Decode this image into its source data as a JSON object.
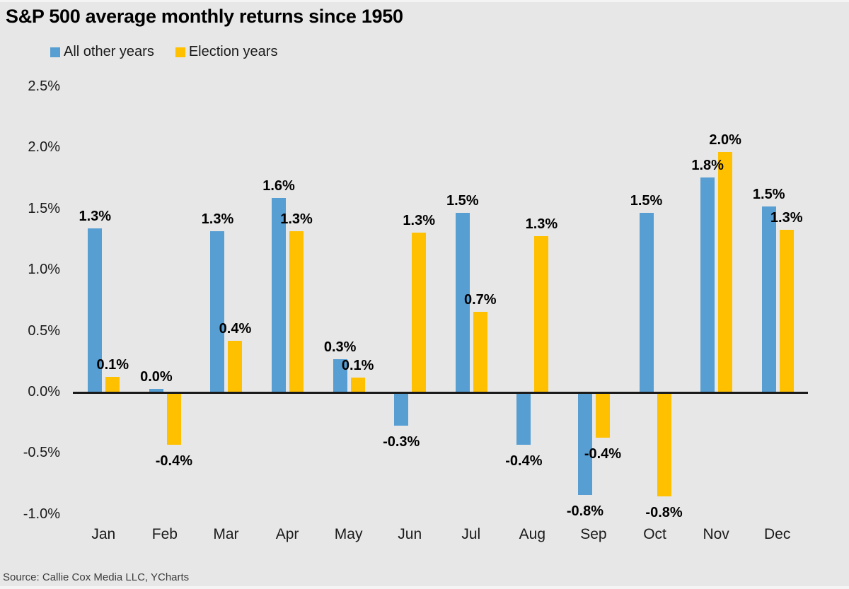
{
  "title": "S&P 500 average monthly returns since 1950",
  "source": "Source: Callie Cox Media LLC, YCharts",
  "colors": {
    "background": "#e7e7e7",
    "axis": "#1a1a1a",
    "series_blue": "#579ed2",
    "series_yellow": "#ffc000"
  },
  "chart_data": {
    "type": "bar",
    "title": "S&P 500 average monthly returns since 1950",
    "xlabel": "",
    "ylabel": "",
    "categories": [
      "Jan",
      "Feb",
      "Mar",
      "Apr",
      "May",
      "Jun",
      "Jul",
      "Aug",
      "Sep",
      "Oct",
      "Nov",
      "Dec"
    ],
    "series": [
      {
        "name": "All other years",
        "color": "#579ed2",
        "values": [
          1.34,
          0.03,
          1.32,
          1.59,
          0.27,
          -0.27,
          1.47,
          -0.43,
          -0.84,
          1.47,
          1.76,
          1.52
        ],
        "labels": [
          "1.3%",
          "0.0%",
          "1.3%",
          "1.6%",
          "0.3%",
          "-0.3%",
          "1.5%",
          "-0.4%",
          "-0.8%",
          "1.5%",
          "1.8%",
          "1.5%"
        ]
      },
      {
        "name": "Election years",
        "color": "#ffc000",
        "values": [
          0.13,
          -0.43,
          0.42,
          1.32,
          0.12,
          1.31,
          0.66,
          1.28,
          -0.37,
          -0.85,
          1.97,
          1.33
        ],
        "labels": [
          "0.1%",
          "-0.4%",
          "0.4%",
          "1.3%",
          "0.1%",
          "1.3%",
          "0.7%",
          "1.3%",
          "-0.4%",
          "-0.8%",
          "2.0%",
          "1.3%"
        ]
      }
    ],
    "yticks": [
      "2.5%",
      "2.0%",
      "1.5%",
      "1.0%",
      "0.5%",
      "0.0%",
      "-0.5%",
      "-1.0%"
    ],
    "ytick_values": [
      2.5,
      2.0,
      1.5,
      1.0,
      0.5,
      0.0,
      -0.5,
      -1.0
    ],
    "ylim": [
      -1.0,
      2.5
    ],
    "grid": false,
    "legend_position": "top-left",
    "data_labels": true
  }
}
